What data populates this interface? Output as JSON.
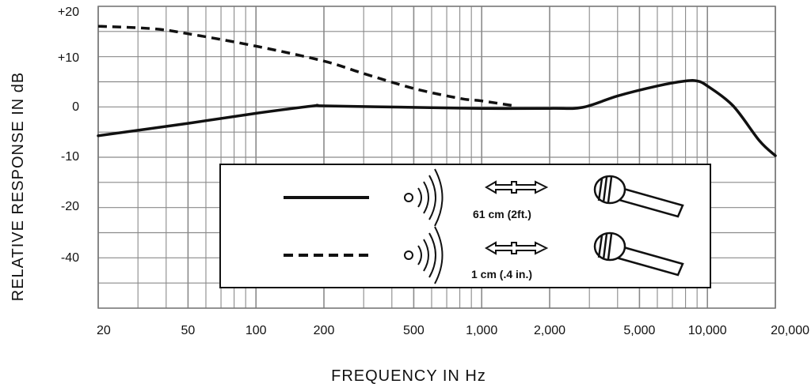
{
  "chart_data": {
    "type": "line",
    "xlabel": "FREQUENCY IN Hz",
    "ylabel": "RELATIVE RESPONSE IN dB",
    "x_scale": "log",
    "xlim": [
      20,
      20000
    ],
    "x_ticks": [
      {
        "value": 20,
        "label": "20"
      },
      {
        "value": 50,
        "label": "50"
      },
      {
        "value": 100,
        "label": "100"
      },
      {
        "value": 200,
        "label": "200"
      },
      {
        "value": 500,
        "label": "500"
      },
      {
        "value": 1000,
        "label": "1,000"
      },
      {
        "value": 2000,
        "label": "2,000"
      },
      {
        "value": 5000,
        "label": "5,000"
      },
      {
        "value": 10000,
        "label": "10,000"
      },
      {
        "value": 20000,
        "label": "20,000"
      }
    ],
    "y_ticks": [
      "+20",
      "+10",
      "0",
      "-10",
      "-20",
      "-40"
    ],
    "grid": true,
    "series": [
      {
        "legend_label": "61 cm (2ft.)",
        "style": "solid",
        "color": "#111111",
        "points": [
          [
            20,
            -6
          ],
          [
            50,
            -3.5
          ],
          [
            100,
            -1.5
          ],
          [
            180,
            0
          ],
          [
            200,
            0
          ],
          [
            500,
            -0.3
          ],
          [
            1000,
            -0.5
          ],
          [
            2000,
            -0.5
          ],
          [
            2800,
            -0.3
          ],
          [
            4000,
            2
          ],
          [
            6000,
            4
          ],
          [
            8000,
            5
          ],
          [
            9000,
            5
          ],
          [
            10000,
            4
          ],
          [
            13000,
            0
          ],
          [
            17000,
            -7
          ],
          [
            20000,
            -10
          ]
        ]
      },
      {
        "legend_label": "1 cm (.4 in.)",
        "style": "dashed",
        "color": "#111111",
        "points": [
          [
            20,
            16
          ],
          [
            35,
            15.5
          ],
          [
            50,
            14.5
          ],
          [
            100,
            12
          ],
          [
            200,
            9
          ],
          [
            300,
            6.5
          ],
          [
            500,
            3.5
          ],
          [
            800,
            1.5
          ],
          [
            1000,
            1
          ],
          [
            1400,
            0
          ]
        ]
      }
    ],
    "legend": {
      "placement": "bottom-right",
      "entries": [
        {
          "label": "61 cm (2ft.)",
          "style": "solid"
        },
        {
          "label": "1 cm (.4 in.)",
          "style": "dashed"
        }
      ]
    }
  }
}
